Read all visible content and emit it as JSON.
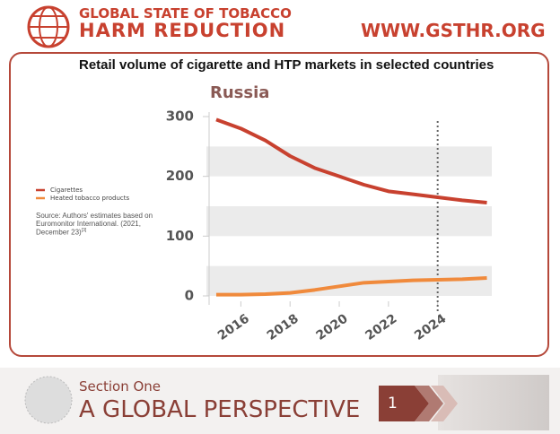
{
  "header": {
    "logo_line1": "GLOBAL STATE OF TOBACCO",
    "logo_line2": "HARM REDUCTION",
    "url": "WWW.GSTHR.ORG"
  },
  "slide_title": "Retail volume of cigarette and HTP markets in selected countries",
  "source": "Source: Authors' estimates based on Euromonitor International. (2021, December 23)",
  "source_ref": "[3]",
  "footer": {
    "section": "Section One",
    "title": "A GLOBAL PERSPECTIVE",
    "number": "1"
  },
  "chart_data": {
    "type": "line",
    "title": "Russia",
    "x": [
      2015,
      2016,
      2017,
      2018,
      2019,
      2020,
      2021,
      2022,
      2023,
      2024,
      2025,
      2026
    ],
    "series": [
      {
        "name": "Cigarettes",
        "color": "#c8412f",
        "values": [
          295,
          280,
          260,
          234,
          214,
          200,
          186,
          175,
          170,
          165,
          160,
          156
        ]
      },
      {
        "name": "Heated tobacco products",
        "color": "#f08a3c",
        "values": [
          2,
          2,
          3,
          5,
          10,
          16,
          22,
          24,
          26,
          27,
          28,
          30
        ]
      }
    ],
    "xlim": [
      2014.6,
      2026.2
    ],
    "xticks": [
      2016,
      2018,
      2020,
      2022,
      2024
    ],
    "ylim": [
      0,
      300
    ],
    "yticks": [
      0,
      100,
      200,
      300
    ],
    "marker_line_x": 2024,
    "grid": "bands"
  }
}
